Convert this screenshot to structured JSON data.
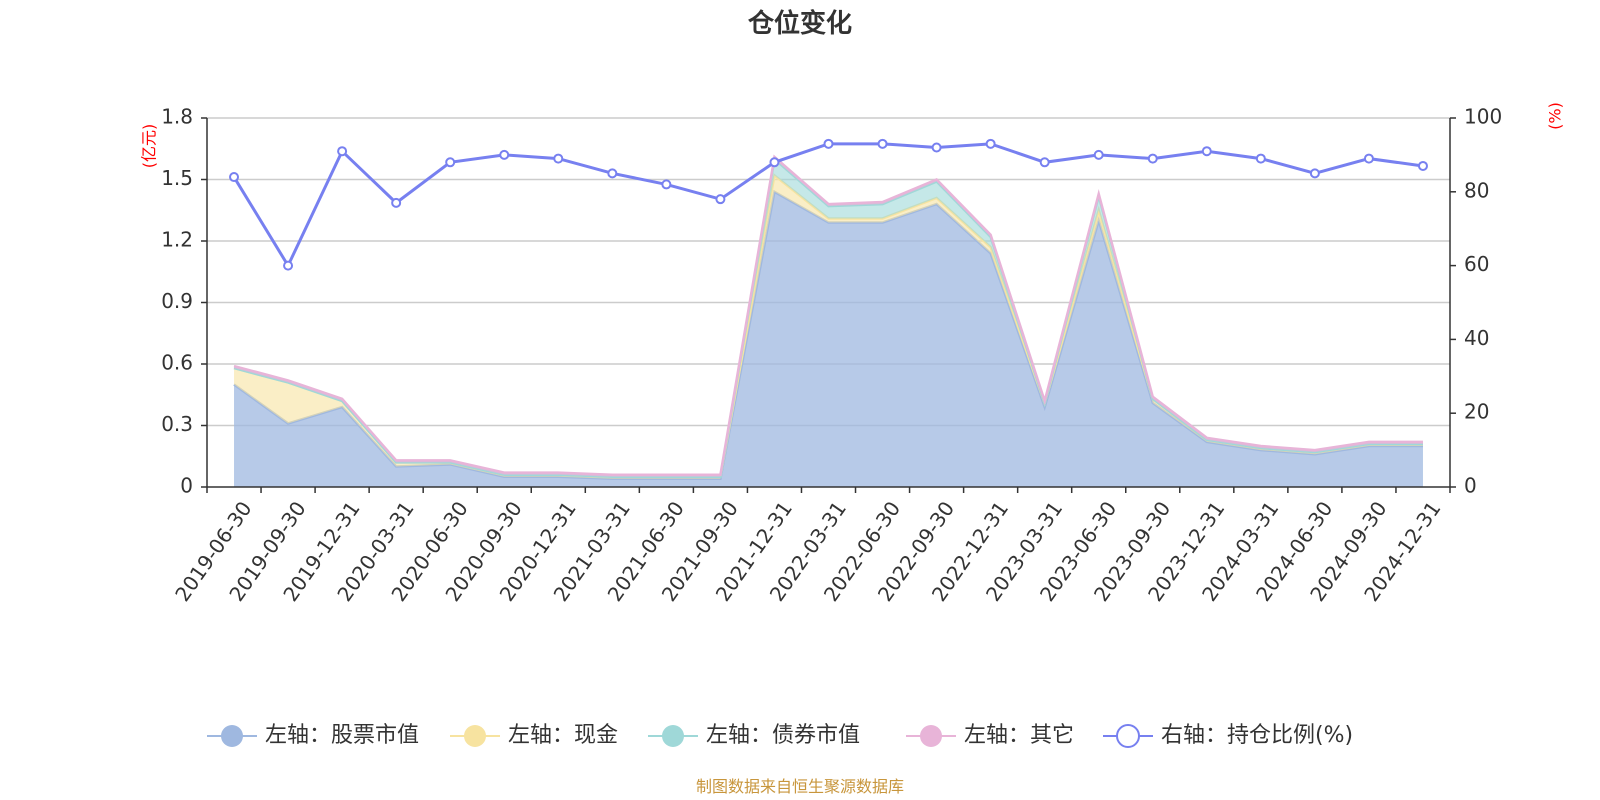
{
  "chart_data": {
    "type": "area",
    "title": "仓位变化",
    "left_axis_unit": "(亿元)",
    "right_axis_unit": "(%)",
    "categories": [
      "2019-06-30",
      "2019-09-30",
      "2019-12-31",
      "2020-03-31",
      "2020-06-30",
      "2020-09-30",
      "2020-12-31",
      "2021-03-31",
      "2021-06-30",
      "2021-09-30",
      "2021-12-31",
      "2022-03-31",
      "2022-06-30",
      "2022-09-30",
      "2022-12-31",
      "2023-03-31",
      "2023-06-30",
      "2023-09-30",
      "2023-12-31",
      "2024-03-31",
      "2024-06-30",
      "2024-09-30",
      "2024-12-31"
    ],
    "left_ylim": [
      0,
      1.8
    ],
    "left_ticks": [
      "0",
      "0.3",
      "0.6",
      "0.9",
      "1.2",
      "1.5",
      "1.8"
    ],
    "right_ylim": [
      0,
      100
    ],
    "right_ticks": [
      "0",
      "20",
      "40",
      "60",
      "80",
      "100"
    ],
    "series": [
      {
        "name": "左轴：股票市值",
        "axis": "left",
        "kind": "stacked-area",
        "color": "#9fb8e0",
        "values": [
          0.5,
          0.31,
          0.39,
          0.1,
          0.11,
          0.05,
          0.05,
          0.04,
          0.04,
          0.04,
          1.44,
          1.29,
          1.29,
          1.38,
          1.14,
          0.39,
          1.3,
          0.41,
          0.22,
          0.18,
          0.16,
          0.2,
          0.2
        ]
      },
      {
        "name": "左轴：现金",
        "axis": "left",
        "kind": "stacked-area",
        "color": "#f7e3a0",
        "values": [
          0.08,
          0.2,
          0.03,
          0.02,
          0.01,
          0.01,
          0.01,
          0.01,
          0.01,
          0.01,
          0.08,
          0.02,
          0.02,
          0.03,
          0.03,
          0.02,
          0.05,
          0.02,
          0.01,
          0.01,
          0.01,
          0.01,
          0.01
        ]
      },
      {
        "name": "左轴：债券市值",
        "axis": "left",
        "kind": "stacked-area",
        "color": "#9fd8d8",
        "values": [
          0,
          0,
          0,
          0,
          0,
          0,
          0,
          0,
          0,
          0,
          0.08,
          0.06,
          0.07,
          0.08,
          0.05,
          0,
          0.07,
          0,
          0,
          0,
          0,
          0,
          0
        ]
      },
      {
        "name": "左轴：其它",
        "axis": "left",
        "kind": "stacked-area",
        "color": "#e8b4d8",
        "values": [
          0.01,
          0.01,
          0.01,
          0.01,
          0.01,
          0.01,
          0.01,
          0.01,
          0.01,
          0.01,
          0.01,
          0.01,
          0.01,
          0.01,
          0.01,
          0.01,
          0.01,
          0.01,
          0.01,
          0.01,
          0.01,
          0.01,
          0.01
        ]
      },
      {
        "name": "右轴：持仓比例(%)",
        "axis": "right",
        "kind": "line",
        "color": "#7780f0",
        "values": [
          84,
          60,
          91,
          77,
          88,
          90,
          89,
          85,
          82,
          78,
          88,
          93,
          93,
          92,
          93,
          88,
          90,
          89,
          91,
          89,
          85,
          89,
          87
        ]
      }
    ],
    "grid": true,
    "legend_position": "bottom"
  },
  "source_note": "制图数据来自恒生聚源数据库"
}
